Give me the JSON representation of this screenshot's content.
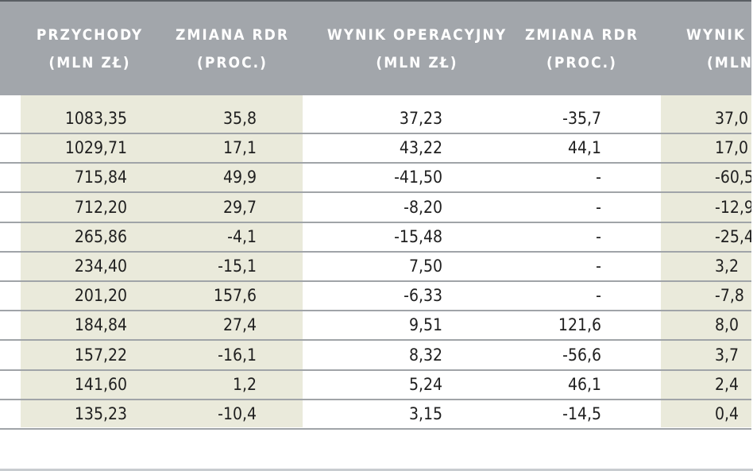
{
  "header": {
    "columns": [
      {
        "line1": "PRZYCHODY",
        "line2": "(MLN ZŁ)"
      },
      {
        "line1": "ZMIANA RDR",
        "line2": "(PROC.)"
      },
      {
        "line1": "WYNIK OPERACYJNY",
        "line2": "(MLN ZŁ)"
      },
      {
        "line1": "ZMIANA RDR",
        "line2": "(PROC.)"
      },
      {
        "line1": "WYNIK N",
        "line2": "(MLN"
      }
    ]
  },
  "rows": [
    [
      "1083,35",
      "35,8",
      "37,23",
      "-35,7",
      "37,0"
    ],
    [
      "1029,71",
      "17,1",
      "43,22",
      "44,1",
      "17,0"
    ],
    [
      "715,84",
      "49,9",
      "-41,50",
      "-",
      "-60,5"
    ],
    [
      "712,20",
      "29,7",
      "-8,20",
      "-",
      "-12,9"
    ],
    [
      "265,86",
      "-4,1",
      "-15,48",
      "-",
      "-25,4"
    ],
    [
      "234,40",
      "-15,1",
      "7,50",
      "-",
      "3,2"
    ],
    [
      "201,20",
      "157,6",
      "-6,33",
      "-",
      "-7,8"
    ],
    [
      "184,84",
      "27,4",
      "9,51",
      "121,6",
      "8,0"
    ],
    [
      "157,22",
      "-16,1",
      "8,32",
      "-56,6",
      "3,7"
    ],
    [
      "141,60",
      "1,2",
      "5,24",
      "46,1",
      "2,4"
    ],
    [
      "135,23",
      "-10,4",
      "3,15",
      "-14,5",
      "0,4"
    ]
  ],
  "colors": {
    "header_bg": "#a2a6ab",
    "band_bg": "#eaeadb",
    "rule": "#a0a4a8",
    "text": "#1f1f1f"
  }
}
